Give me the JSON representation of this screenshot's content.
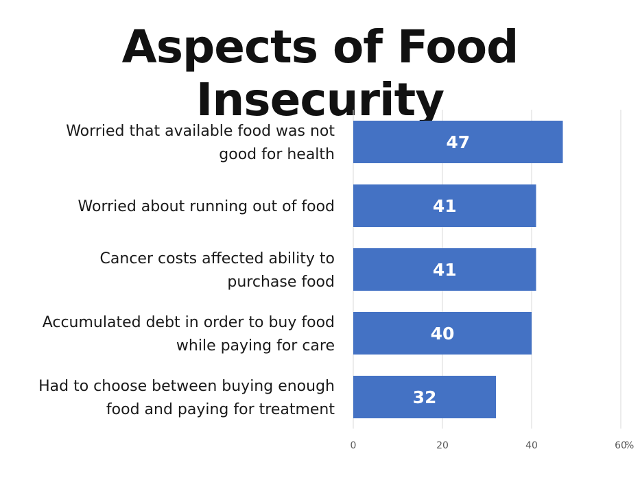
{
  "chart_data": {
    "type": "bar",
    "orientation": "horizontal",
    "title": "Aspects of Food Insecurity",
    "categories": [
      [
        "Worried that available food was not",
        "good for health"
      ],
      [
        "Worried about running out of food"
      ],
      [
        "Cancer costs affected ability to",
        "purchase food"
      ],
      [
        "Accumulated debt in order to buy food",
        "while paying for care"
      ],
      [
        "Had to choose between buying enough",
        "food and paying for treatment"
      ]
    ],
    "values": [
      47,
      41,
      41,
      40,
      32
    ],
    "xlim": [
      0,
      60
    ],
    "xticks": [
      0,
      20,
      40,
      60
    ],
    "xtick_labels": [
      "0",
      "20",
      "40",
      "60"
    ],
    "unit_label": "%",
    "xlabel": "",
    "ylabel": "",
    "grid": true,
    "bar_color": "#4472c4",
    "gridline_color": "#d9d9d9"
  }
}
